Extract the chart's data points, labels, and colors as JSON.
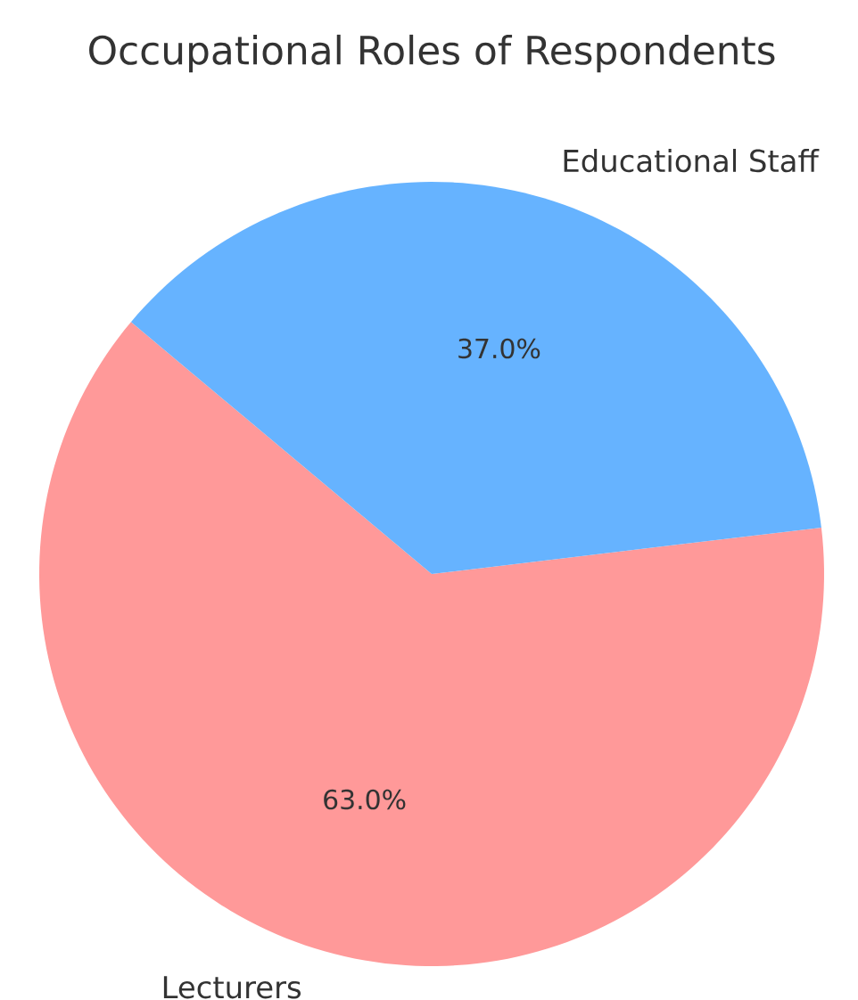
{
  "chart_data": {
    "type": "pie",
    "title": "Occupational Roles of Respondents",
    "categories": [
      "Lecturers",
      "Educational Staff"
    ],
    "values": [
      63,
      37
    ],
    "colors": [
      "#ff9999",
      "#66b3ff"
    ],
    "value_labels": [
      "63.0%",
      "37.0%"
    ]
  }
}
